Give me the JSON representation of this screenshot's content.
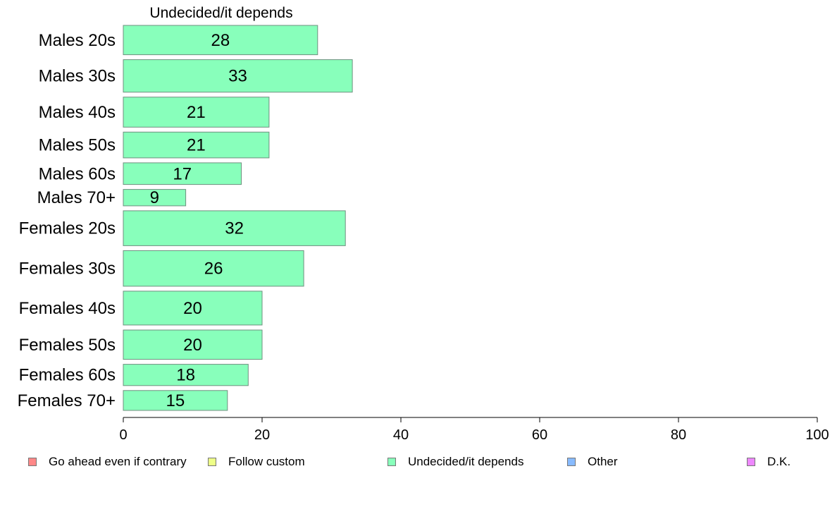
{
  "chart_data": {
    "type": "bar",
    "orientation": "horizontal",
    "title": "Undecided/it depends",
    "categories": [
      "Males 20s",
      "Males 30s",
      "Males 40s",
      "Males 50s",
      "Males 60s",
      "Males 70+",
      "Females 20s",
      "Females 30s",
      "Females 40s",
      "Females 50s",
      "Females 60s",
      "Females 70+"
    ],
    "category_weights": [
      0.84,
      0.93,
      0.86,
      0.74,
      0.62,
      0.47,
      1.0,
      1.02,
      0.97,
      0.84,
      0.61,
      0.57
    ],
    "series": [
      {
        "name": "Undecided/it depends",
        "values": [
          28,
          33,
          21,
          21,
          17,
          9,
          32,
          26,
          20,
          20,
          18,
          15
        ],
        "color": "#88ffbb"
      }
    ],
    "xlim": [
      0,
      100
    ],
    "x_ticks": [
      0,
      20,
      40,
      60,
      80,
      100
    ],
    "grid": false,
    "legend_position": "bottom",
    "legend": [
      {
        "label": "Go ahead even if contrary",
        "color": "#ff8888"
      },
      {
        "label": "Follow custom",
        "color": "#eeff88"
      },
      {
        "label": "Undecided/it depends",
        "color": "#88ffbb"
      },
      {
        "label": "Other",
        "color": "#88bbff"
      },
      {
        "label": "D.K.",
        "color": "#ee88ff"
      }
    ]
  }
}
